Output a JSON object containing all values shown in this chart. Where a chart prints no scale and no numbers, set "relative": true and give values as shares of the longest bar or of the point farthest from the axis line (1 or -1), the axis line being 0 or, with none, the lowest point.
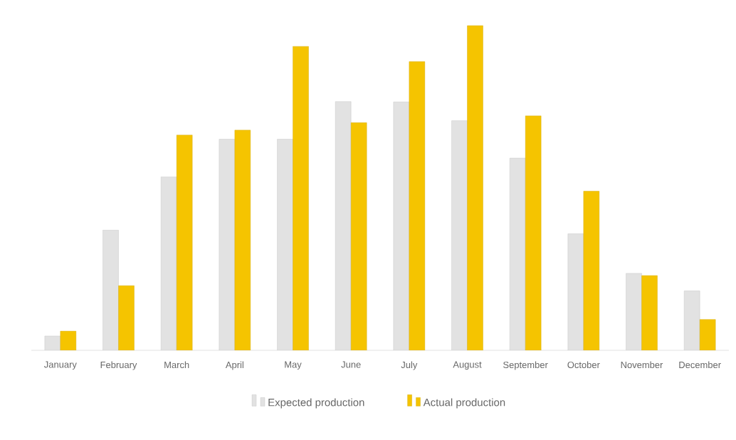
{
  "chart_data": {
    "type": "bar",
    "relative": true,
    "legend": "bottom",
    "categories": [
      "January",
      "February",
      "March",
      "April",
      "May",
      "June",
      "July",
      "August",
      "September",
      "October",
      "November",
      "December"
    ],
    "series": [
      {
        "name": "Expected production",
        "color": "#e2e2e2",
        "values": [
          0.044,
          0.37,
          0.534,
          0.65,
          0.65,
          0.766,
          0.765,
          0.707,
          0.592,
          0.359,
          0.237,
          0.183
        ]
      },
      {
        "name": "Actual production",
        "color": "#f5c400",
        "values": [
          0.059,
          0.199,
          0.663,
          0.678,
          0.936,
          0.701,
          0.889,
          1,
          0.722,
          0.49,
          0.23,
          0.095
        ]
      }
    ]
  }
}
